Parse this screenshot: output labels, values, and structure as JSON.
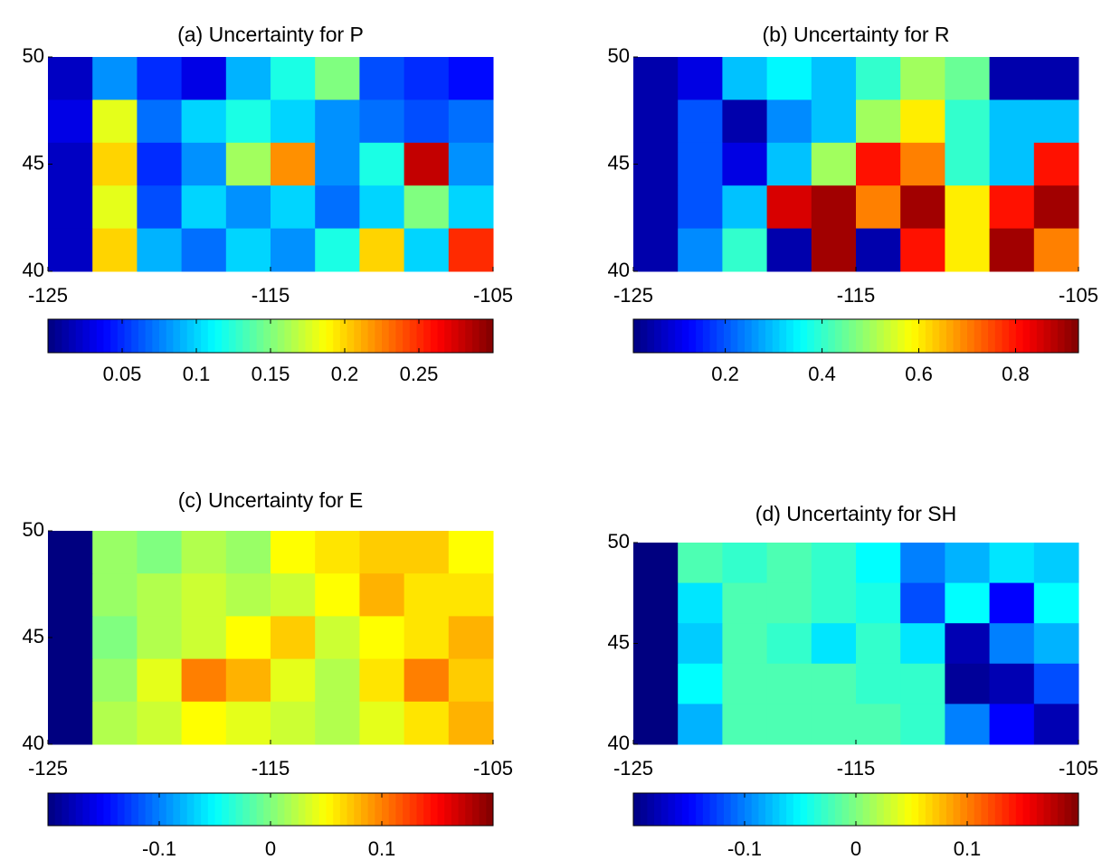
{
  "chart_data": [
    {
      "type": "heatmap",
      "title": "(a) Uncertainty for P",
      "colormap": "jet",
      "xlim": [
        -125,
        -105
      ],
      "ylim": [
        40,
        50
      ],
      "xticks": [
        -125,
        -115,
        -105
      ],
      "yticks": [
        40,
        45,
        50
      ],
      "clim": [
        0,
        0.3
      ],
      "cticks": [
        0.05,
        0.1,
        0.15,
        0.2,
        0.25
      ],
      "values": [
        [
          0.02,
          0.08,
          0.05,
          0.03,
          0.09,
          0.12,
          0.15,
          0.06,
          0.05,
          0.04
        ],
        [
          0.03,
          0.18,
          0.07,
          0.1,
          0.12,
          0.1,
          0.08,
          0.07,
          0.06,
          0.07
        ],
        [
          0.02,
          0.2,
          0.05,
          0.08,
          0.16,
          0.22,
          0.08,
          0.12,
          0.28,
          0.08
        ],
        [
          0.02,
          0.18,
          0.06,
          0.1,
          0.08,
          0.1,
          0.07,
          0.1,
          0.15,
          0.1
        ],
        [
          0.02,
          0.2,
          0.09,
          0.07,
          0.1,
          0.08,
          0.12,
          0.2,
          0.1,
          0.25
        ]
      ]
    },
    {
      "type": "heatmap",
      "title": "(b) Uncertainty for R",
      "colormap": "jet",
      "xlim": [
        -125,
        -105
      ],
      "ylim": [
        40,
        50
      ],
      "xticks": [
        -125,
        -115,
        -105
      ],
      "yticks": [
        40,
        45,
        50
      ],
      "clim": [
        0.01,
        0.93
      ],
      "cticks": [
        0.2,
        0.4,
        0.6,
        0.8
      ],
      "values": [
        [
          0.05,
          0.1,
          0.3,
          0.35,
          0.3,
          0.4,
          0.5,
          0.45,
          0.05,
          0.05
        ],
        [
          0.05,
          0.2,
          0.05,
          0.25,
          0.3,
          0.5,
          0.6,
          0.4,
          0.3,
          0.3
        ],
        [
          0.05,
          0.2,
          0.1,
          0.3,
          0.5,
          0.8,
          0.7,
          0.4,
          0.3,
          0.8
        ],
        [
          0.05,
          0.2,
          0.3,
          0.85,
          0.9,
          0.7,
          0.9,
          0.6,
          0.8,
          0.9
        ],
        [
          0.05,
          0.25,
          0.4,
          0.05,
          0.9,
          0.05,
          0.8,
          0.6,
          0.9,
          0.7
        ]
      ]
    },
    {
      "type": "heatmap",
      "title": "(c) Uncertainty for E",
      "colormap": "jet",
      "xlim": [
        -125,
        -105
      ],
      "ylim": [
        40,
        50
      ],
      "xticks": [
        -125,
        -115,
        -105
      ],
      "yticks": [
        40,
        45,
        50
      ],
      "clim": [
        -0.2,
        0.2
      ],
      "cticks": [
        -0.1,
        0,
        0.1
      ],
      "values": [
        [
          -0.2,
          0.01,
          0,
          0.02,
          0.01,
          0.05,
          0.06,
          0.07,
          0.07,
          0.05
        ],
        [
          -0.2,
          0.01,
          0.02,
          0.03,
          0.02,
          0.03,
          0.05,
          0.08,
          0.06,
          0.06
        ],
        [
          -0.2,
          0,
          0.02,
          0.03,
          0.05,
          0.07,
          0.03,
          0.05,
          0.06,
          0.08
        ],
        [
          -0.2,
          0.01,
          0.04,
          0.1,
          0.08,
          0.04,
          0.02,
          0.06,
          0.1,
          0.07
        ],
        [
          -0.2,
          0.02,
          0.03,
          0.05,
          0.04,
          0.03,
          0.02,
          0.04,
          0.06,
          0.08
        ]
      ]
    },
    {
      "type": "heatmap",
      "title": "(d) Uncertainty for SH",
      "colormap": "jet",
      "xlim": [
        -125,
        -105
      ],
      "ylim": [
        40,
        50
      ],
      "xticks": [
        -125,
        -115,
        -105
      ],
      "yticks": [
        40,
        45,
        50
      ],
      "clim": [
        -0.2,
        0.2
      ],
      "cticks": [
        -0.1,
        0,
        0.1
      ],
      "values": [
        [
          -0.2,
          -0.02,
          -0.03,
          -0.02,
          -0.03,
          -0.05,
          -0.1,
          -0.08,
          -0.06,
          -0.07
        ],
        [
          -0.2,
          -0.06,
          -0.02,
          -0.02,
          -0.03,
          -0.04,
          -0.12,
          -0.05,
          -0.15,
          -0.05
        ],
        [
          -0.2,
          -0.07,
          -0.02,
          -0.03,
          -0.06,
          -0.03,
          -0.06,
          -0.18,
          -0.1,
          -0.08
        ],
        [
          -0.2,
          -0.05,
          -0.02,
          -0.02,
          -0.02,
          -0.03,
          -0.03,
          -0.19,
          -0.18,
          -0.12
        ],
        [
          -0.2,
          -0.08,
          -0.02,
          -0.02,
          -0.02,
          -0.02,
          -0.03,
          -0.1,
          -0.15,
          -0.18
        ]
      ]
    }
  ]
}
